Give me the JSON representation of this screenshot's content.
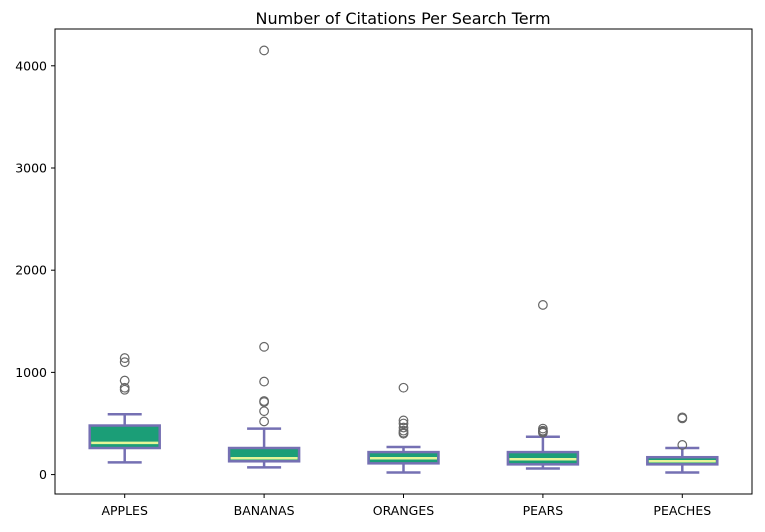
{
  "chart_data": {
    "type": "boxplot",
    "title": "Number of Citations Per Search Term",
    "xlabel": "",
    "ylabel": "",
    "ylim": [
      -190,
      4360
    ],
    "yticks": [
      0,
      1000,
      2000,
      3000,
      4000
    ],
    "grid": false,
    "legend": "none",
    "colors": {
      "box_fill": "#1b9e77",
      "box_edge": "#7570b3",
      "median": "#e6f598",
      "whisker": "#7570b3",
      "flier_edge": "#666666"
    },
    "categories": [
      "APPLES",
      "BANANAS",
      "ORANGES",
      "PEARS",
      "PEACHES"
    ],
    "boxes": [
      {
        "label": "APPLES",
        "whislo": 120,
        "q1": 260,
        "med": 310,
        "q3": 480,
        "whishi": 590,
        "fliers": [
          1140,
          1100,
          920,
          850,
          830
        ]
      },
      {
        "label": "BANANAS",
        "whislo": 70,
        "q1": 130,
        "med": 160,
        "q3": 260,
        "whishi": 450,
        "fliers": [
          4150,
          1250,
          910,
          720,
          710,
          620,
          520
        ]
      },
      {
        "label": "ORANGES",
        "whislo": 20,
        "q1": 110,
        "med": 160,
        "q3": 220,
        "whishi": 270,
        "fliers": [
          850,
          530,
          500,
          460,
          430,
          410,
          400
        ]
      },
      {
        "label": "PEARS",
        "whislo": 60,
        "q1": 100,
        "med": 150,
        "q3": 220,
        "whishi": 370,
        "fliers": [
          1660,
          450,
          430,
          420,
          410
        ]
      },
      {
        "label": "PEACHES",
        "whislo": 20,
        "q1": 100,
        "med": 130,
        "q3": 170,
        "whishi": 260,
        "fliers": [
          560,
          550,
          290
        ]
      }
    ]
  }
}
